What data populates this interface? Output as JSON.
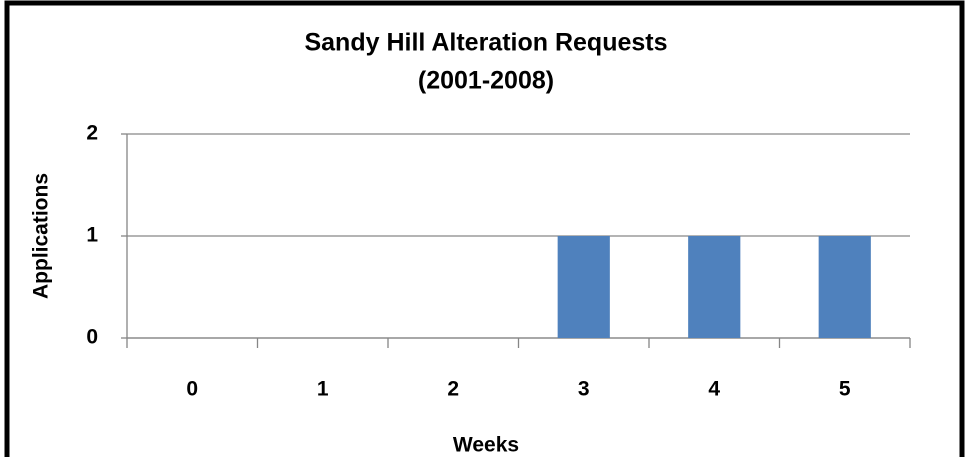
{
  "chart_data": {
    "type": "bar",
    "title": "Sandy Hill Alteration Requests",
    "subtitle": "(2001-2008)",
    "x_label": "Weeks",
    "y_label": "Applications",
    "categories": [
      "0",
      "1",
      "2",
      "3",
      "4",
      "5"
    ],
    "values": [
      0,
      0,
      0,
      1,
      1,
      1
    ],
    "color": "#4f81bd",
    "ylim": [
      0,
      2
    ],
    "yticks": [
      0,
      1,
      2
    ],
    "grid": true
  }
}
